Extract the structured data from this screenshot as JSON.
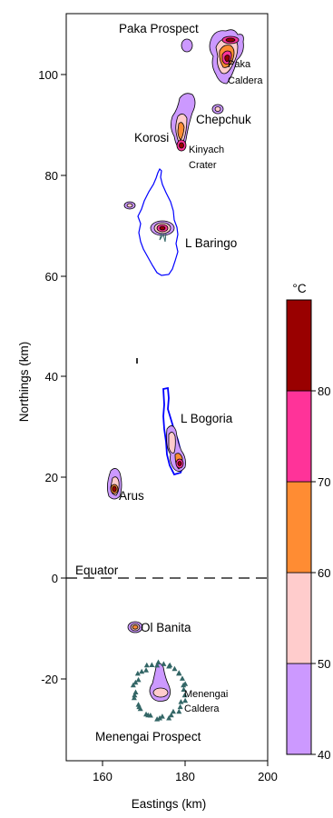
{
  "axes": {
    "x_label": "Eastings (km)",
    "y_label": "Northings (km)",
    "x_ticks": [
      "160",
      "180",
      "200"
    ],
    "y_ticks": [
      "-20",
      "0",
      "20",
      "40",
      "60",
      "80",
      "100"
    ]
  },
  "places": {
    "paka_prospect": "Paka Prospect",
    "paka_caldera_1": "Paka",
    "paka_caldera_2": "Caldera",
    "chepchuk": "Chepchuk",
    "korosi": "Korosi",
    "kinyach_1": "Kinyach",
    "kinyach_2": "Crater",
    "l_baringo": "L Baringo",
    "l_bogoria": "L Bogoria",
    "arus": "Arus",
    "equator": "Equator",
    "ol_banita": "Ol Banita",
    "menengai_caldera_1": "Menengai",
    "menengai_caldera_2": "Caldera",
    "menengai_prospect": "Menengai Prospect"
  },
  "legend": {
    "unit": "°C",
    "ticks": [
      "40",
      "50",
      "60",
      "70",
      "80"
    ],
    "bands": [
      {
        "range": "40-50",
        "color": "#cc99ff"
      },
      {
        "range": "50-60",
        "color": "#ffcccc"
      },
      {
        "range": "60-70",
        "color": "#ff8c33"
      },
      {
        "range": "70-80",
        "color": "#ff3399"
      },
      {
        "range": "80+",
        "color": "#990000"
      }
    ]
  },
  "colors": {
    "lake_outline": "#0000ff",
    "caldera_markers": "#336666",
    "contour_line": "#000000"
  }
}
